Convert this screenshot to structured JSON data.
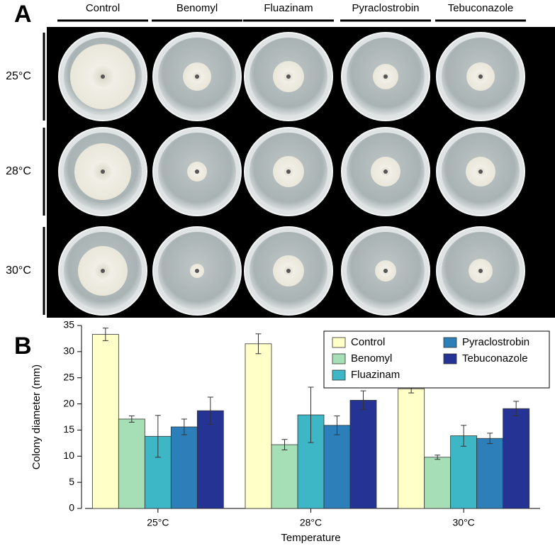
{
  "panel_a": {
    "label": "A",
    "columns": [
      "Control",
      "Benomyl",
      "Fluazinam",
      "Pyraclostrobin",
      "Tebuconazole"
    ],
    "rows": [
      "25°C",
      "28°C",
      "30°C"
    ]
  },
  "chart_data": {
    "type": "bar",
    "panel_label": "B",
    "categories": [
      "25°C",
      "28°C",
      "30°C"
    ],
    "series": [
      {
        "name": "Control",
        "color": "#ffffc8",
        "values": [
          33.3,
          31.5,
          22.9
        ],
        "errors": [
          1.2,
          1.9,
          0.8
        ]
      },
      {
        "name": "Benomyl",
        "color": "#a6dfb6",
        "values": [
          17.1,
          12.2,
          9.8
        ],
        "errors": [
          0.6,
          1.0,
          0.4
        ]
      },
      {
        "name": "Fluazinam",
        "color": "#3db7c6",
        "values": [
          13.8,
          17.9,
          13.9
        ],
        "errors": [
          4.0,
          5.3,
          2.0
        ]
      },
      {
        "name": "Pyraclostrobin",
        "color": "#2c7fb8",
        "values": [
          15.6,
          15.9,
          13.4
        ],
        "errors": [
          1.5,
          1.8,
          1.0
        ]
      },
      {
        "name": "Tebuconazole",
        "color": "#253494",
        "values": [
          18.7,
          20.7,
          19.1
        ],
        "errors": [
          2.6,
          1.8,
          1.4
        ]
      }
    ],
    "ylim": [
      0,
      35
    ],
    "yticks": [
      0,
      5,
      10,
      15,
      20,
      25,
      30,
      35
    ],
    "ylabel": "Colony diameter (mm)",
    "xlabel": "Temperature",
    "legend": "top-right"
  }
}
